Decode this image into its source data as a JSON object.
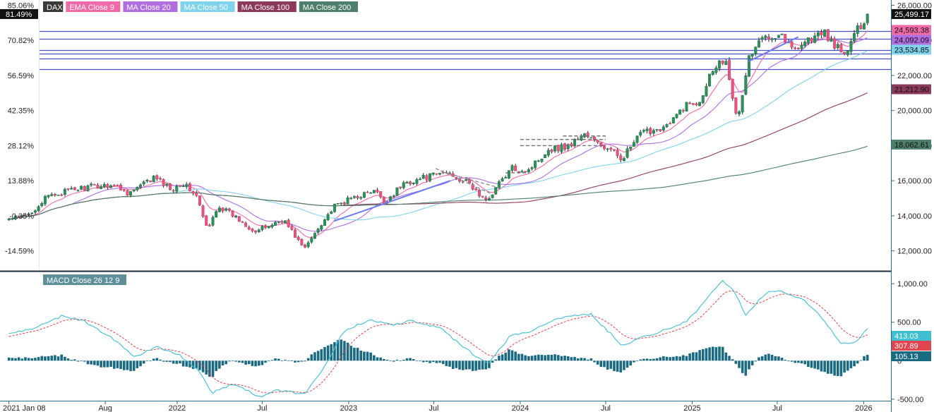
{
  "chart_data": {
    "type": "candlestick",
    "instrument": "DAX",
    "legend": [
      {
        "label": "DAX",
        "color": "#3a3a3a"
      },
      {
        "label": "EMA Close 9",
        "color": "#f06aa8"
      },
      {
        "label": "MA Close 20",
        "color": "#b06ee0"
      },
      {
        "label": "MA Close 50",
        "color": "#7fd3ea"
      },
      {
        "label": "MA Close 100",
        "color": "#8c3a5c"
      },
      {
        "label": "MA Close 200",
        "color": "#4e7f6a"
      }
    ],
    "x_axis": {
      "start": "2021-01-08",
      "end": "2026-01-09",
      "labels": [
        {
          "date": "2021-01-08",
          "text": "2021 Jan 08"
        },
        {
          "date": "2021-08-01",
          "text": "Aug"
        },
        {
          "date": "2022-01-01",
          "text": "2022"
        },
        {
          "date": "2022-07-01",
          "text": "Jul"
        },
        {
          "date": "2023-01-01",
          "text": "2023"
        },
        {
          "date": "2023-07-01",
          "text": "Jul"
        },
        {
          "date": "2024-01-01",
          "text": "2024"
        },
        {
          "date": "2024-07-01",
          "text": "Jul"
        },
        {
          "date": "2025-01-01",
          "text": "2025"
        },
        {
          "date": "2025-07-01",
          "text": "Jul"
        },
        {
          "date": "2026-01-01",
          "text": "2026"
        }
      ]
    },
    "price_axis": {
      "ylim": [
        10900,
        26300
      ],
      "ticks": [
        "12,000.00",
        "14,000.00",
        "16,000.00",
        "18,000.00",
        "20,000.00",
        "22,000.00",
        "24,000.00",
        "26,000.00"
      ],
      "tick_values": [
        12000,
        14000,
        16000,
        18000,
        20000,
        22000,
        24000,
        26000
      ]
    },
    "percent_axis": {
      "ticks": [
        {
          "text": "85.06%",
          "price": 26000
        },
        {
          "text": "70.82%",
          "price": 24000
        },
        {
          "text": "56.59%",
          "price": 22000
        },
        {
          "text": "42.35%",
          "price": 20000
        },
        {
          "text": "28.12%",
          "price": 18000
        },
        {
          "text": "13.88%",
          "price": 16000
        },
        {
          "text": "-0.35%",
          "price": 14000
        },
        {
          "text": "-14.59%",
          "price": 12000
        }
      ],
      "current": {
        "text": "81.49%",
        "price": 25499.17
      }
    },
    "last_values": [
      {
        "text": "25,499.17",
        "value": 25499.17,
        "color": "#111111",
        "name": "DAX"
      },
      {
        "text": "24,593.38",
        "value": 24593.38,
        "color": "#f06aa8",
        "name": "EMA Close 9"
      },
      {
        "text": "24,092.09",
        "value": 24092.09,
        "color": "#b06ee0",
        "name": "MA Close 20"
      },
      {
        "text": "23,534.85",
        "value": 23534.85,
        "color": "#7fd3ea",
        "name": "MA Close 50"
      },
      {
        "text": "21,212.90",
        "value": 21212.9,
        "color": "#8c3a5c",
        "name": "MA Close 100"
      },
      {
        "text": "18,062.61",
        "value": 18062.61,
        "color": "#4e7f6a",
        "name": "MA Close 200"
      }
    ],
    "horizontal_levels": [
      24550,
      24070,
      23450,
      23230,
      22980,
      22350
    ],
    "anchors": [
      [
        "2021-01-08",
        13800
      ],
      [
        "2021-02-15",
        14000
      ],
      [
        "2021-04-01",
        15100
      ],
      [
        "2021-05-10",
        15400
      ],
      [
        "2021-06-15",
        15600
      ],
      [
        "2021-08-15",
        15800
      ],
      [
        "2021-09-20",
        15300
      ],
      [
        "2021-11-15",
        16200
      ],
      [
        "2021-12-20",
        15500
      ],
      [
        "2022-01-10",
        15900
      ],
      [
        "2022-02-10",
        15200
      ],
      [
        "2022-03-07",
        13100
      ],
      [
        "2022-03-28",
        14600
      ],
      [
        "2022-05-01",
        14000
      ],
      [
        "2022-06-17",
        13100
      ],
      [
        "2022-08-15",
        13800
      ],
      [
        "2022-09-29",
        12100
      ],
      [
        "2022-11-01",
        13500
      ],
      [
        "2022-12-01",
        14500
      ],
      [
        "2023-01-15",
        15100
      ],
      [
        "2023-03-01",
        15400
      ],
      [
        "2023-03-15",
        14700
      ],
      [
        "2023-05-01",
        15900
      ],
      [
        "2023-06-15",
        16200
      ],
      [
        "2023-07-31",
        16500
      ],
      [
        "2023-09-15",
        15800
      ],
      [
        "2023-10-20",
        14800
      ],
      [
        "2023-11-15",
        15800
      ],
      [
        "2023-12-15",
        16700
      ],
      [
        "2024-01-17",
        16600
      ],
      [
        "2024-03-01",
        17800
      ],
      [
        "2024-04-15",
        18000
      ],
      [
        "2024-05-15",
        18700
      ],
      [
        "2024-06-15",
        18100
      ],
      [
        "2024-08-05",
        17300
      ],
      [
        "2024-09-15",
        18700
      ],
      [
        "2024-11-15",
        19200
      ],
      [
        "2024-12-15",
        20300
      ],
      [
        "2025-01-15",
        20500
      ],
      [
        "2025-02-15",
        22500
      ],
      [
        "2025-03-15",
        23000
      ],
      [
        "2025-04-07",
        19200
      ],
      [
        "2025-05-01",
        23000
      ],
      [
        "2025-06-05",
        24300
      ],
      [
        "2025-07-10",
        24400
      ],
      [
        "2025-08-01",
        23500
      ],
      [
        "2025-09-01",
        24000
      ],
      [
        "2025-10-10",
        24400
      ],
      [
        "2025-11-21",
        23100
      ],
      [
        "2025-12-10",
        24200
      ],
      [
        "2026-01-09",
        25499
      ]
    ],
    "drawings": [
      {
        "kind": "trend",
        "color": "#6b7cf0",
        "points": [
          [
            "2022-12-01",
            13700
          ],
          [
            "2023-08-05",
            16000
          ]
        ]
      },
      {
        "kind": "trend",
        "color": "#6b7cf0",
        "points": [
          [
            "2025-05-01",
            22800
          ],
          [
            "2025-08-15",
            24200
          ]
        ]
      },
      {
        "kind": "dashed-box",
        "color": "#909090",
        "points": [
          [
            "2023-07-05",
            16700
          ],
          [
            "2023-11-05",
            15200
          ]
        ]
      },
      {
        "kind": "dashed-line",
        "color": "#707070",
        "points": [
          [
            "2024-01-01",
            18350
          ],
          [
            "2024-07-01",
            18350
          ]
        ]
      },
      {
        "kind": "dashed-line",
        "color": "#707070",
        "points": [
          [
            "2024-01-01",
            18000
          ],
          [
            "2024-07-01",
            18000
          ]
        ]
      },
      {
        "kind": "dashed-line",
        "color": "#707070",
        "points": [
          [
            "2024-04-01",
            18550
          ],
          [
            "2024-07-01",
            18550
          ]
        ]
      },
      {
        "kind": "dashed-line",
        "color": "#707070",
        "points": [
          [
            "2023-12-01",
            16450
          ],
          [
            "2024-01-20",
            16450
          ]
        ]
      }
    ],
    "macd": {
      "label": "MACD Close 26 12 9",
      "ylim": [
        -520,
        1130
      ],
      "ticks": [
        "1,000.00",
        "500.00",
        "0",
        "-500.00"
      ],
      "tick_values": [
        1000,
        500,
        0,
        -500
      ],
      "last_values": [
        {
          "text": "413.03",
          "value": 413.03,
          "color": "#3fbfcf",
          "name": "MACD"
        },
        {
          "text": "307.89",
          "value": 307.89,
          "color": "#e0444e",
          "name": "Signal"
        },
        {
          "text": "105.13",
          "value": 105.13,
          "color": "#1a6a82",
          "name": "Histogram"
        }
      ],
      "anchors": [
        [
          "2021-01-08",
          350
        ],
        [
          "2021-03-01",
          420
        ],
        [
          "2021-05-01",
          580
        ],
        [
          "2021-06-15",
          520
        ],
        [
          "2021-08-15",
          300
        ],
        [
          "2021-10-01",
          50
        ],
        [
          "2021-11-20",
          180
        ],
        [
          "2022-01-05",
          80
        ],
        [
          "2022-02-20",
          -150
        ],
        [
          "2022-03-15",
          -420
        ],
        [
          "2022-05-01",
          -300
        ],
        [
          "2022-06-25",
          -470
        ],
        [
          "2022-08-01",
          -380
        ],
        [
          "2022-09-30",
          -440
        ],
        [
          "2022-11-15",
          -30
        ],
        [
          "2022-12-20",
          380
        ],
        [
          "2023-02-15",
          530
        ],
        [
          "2023-04-01",
          460
        ],
        [
          "2023-05-15",
          520
        ],
        [
          "2023-07-15",
          420
        ],
        [
          "2023-09-15",
          120
        ],
        [
          "2023-10-25",
          -40
        ],
        [
          "2023-12-10",
          320
        ],
        [
          "2024-01-20",
          380
        ],
        [
          "2024-03-01",
          500
        ],
        [
          "2024-04-20",
          590
        ],
        [
          "2024-06-01",
          600
        ],
        [
          "2024-08-05",
          200
        ],
        [
          "2024-09-15",
          300
        ],
        [
          "2024-11-15",
          420
        ],
        [
          "2024-12-20",
          520
        ],
        [
          "2025-01-20",
          700
        ],
        [
          "2025-03-05",
          1050
        ],
        [
          "2025-04-01",
          900
        ],
        [
          "2025-04-25",
          580
        ],
        [
          "2025-05-20",
          770
        ],
        [
          "2025-06-15",
          920
        ],
        [
          "2025-07-20",
          880
        ],
        [
          "2025-08-25",
          800
        ],
        [
          "2025-10-01",
          580
        ],
        [
          "2025-11-15",
          220
        ],
        [
          "2025-12-15",
          250
        ],
        [
          "2026-01-09",
          413
        ]
      ]
    }
  }
}
